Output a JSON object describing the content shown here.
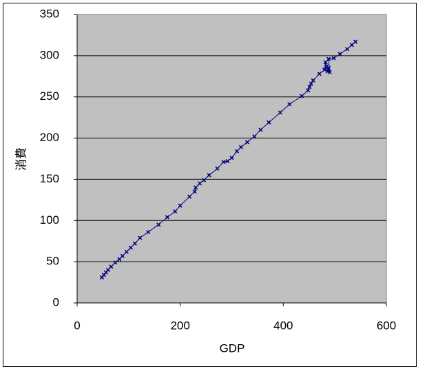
{
  "chart_data": {
    "type": "scatter",
    "xlabel": "GDP",
    "ylabel": "消費",
    "x": [
      48,
      52,
      56,
      60,
      66,
      74,
      82,
      88,
      96,
      104,
      112,
      122,
      138,
      158,
      175,
      190,
      200,
      218,
      228,
      230,
      238,
      246,
      256,
      272,
      284,
      292,
      300,
      310,
      318,
      330,
      344,
      356,
      372,
      394,
      412,
      436,
      448,
      451,
      454,
      458,
      470,
      480,
      482,
      484,
      486,
      488,
      490,
      488,
      498,
      510,
      524,
      533,
      540
    ],
    "series": [
      {
        "color": "#000080",
        "values": [
          31,
          34,
          37,
          40,
          44,
          49,
          53,
          57,
          62,
          67,
          72,
          79,
          86,
          95,
          104,
          111,
          118,
          129,
          135,
          140,
          145,
          149,
          155,
          163,
          171,
          172,
          176,
          184,
          189,
          195,
          202,
          210,
          219,
          231,
          241,
          251,
          258,
          262,
          266,
          270,
          278,
          283,
          292,
          287,
          281,
          285,
          280,
          296,
          297,
          302,
          308,
          313,
          317
        ]
      }
    ],
    "xlim": [
      0,
      600
    ],
    "xticks": [
      0,
      200,
      400,
      600
    ],
    "ylim": [
      0,
      350
    ],
    "yticks": [
      0,
      50,
      100,
      150,
      200,
      250,
      300,
      350
    ],
    "grid": true,
    "lines": true,
    "plot_background": "#c0c0c0"
  }
}
